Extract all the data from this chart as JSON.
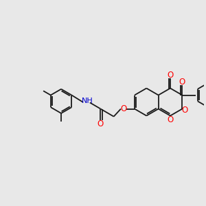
{
  "background_color": "#e8e8e8",
  "bond_color": "#1a1a1a",
  "oxygen_color": "#ff0000",
  "nitrogen_color": "#0000cd",
  "font_size": 8.5,
  "fig_size": [
    3.0,
    3.0
  ],
  "dpi": 100,
  "xlim": [
    0,
    10
  ],
  "ylim": [
    0,
    10
  ]
}
